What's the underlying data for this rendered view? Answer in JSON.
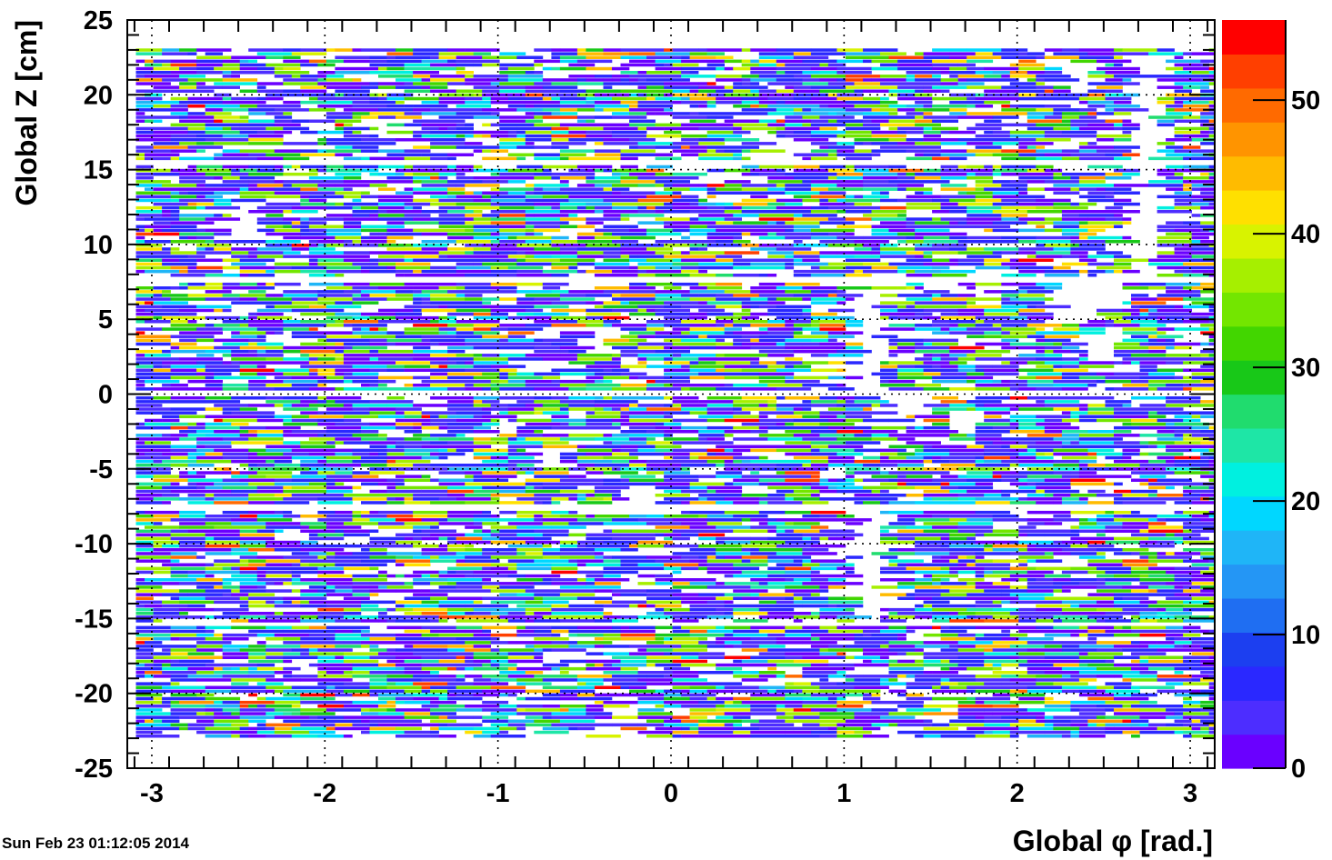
{
  "chart_data": {
    "type": "heatmap",
    "title": "",
    "xlabel": "Global φ [rad.]",
    "ylabel": "Global Z [cm]",
    "xlim": [
      -3.1416,
      3.1416
    ],
    "ylim": [
      -25,
      25
    ],
    "x_ticks": [
      "-3",
      "-2",
      "-1",
      "0",
      "1",
      "2",
      "3"
    ],
    "y_ticks": [
      "25",
      "20",
      "15",
      "10",
      "5",
      "0",
      "-5",
      "-10",
      "-15",
      "-20",
      "-25"
    ],
    "z_range": [
      0,
      56
    ],
    "z_ticks": [
      "0",
      "10",
      "20",
      "30",
      "40",
      "50"
    ],
    "grid": true,
    "occupied_z_ranges": [
      [
        -23.0,
        -15.6
      ],
      [
        -15.3,
        -7.8
      ],
      [
        -7.4,
        -0.2
      ],
      [
        0.2,
        7.4
      ],
      [
        7.8,
        15.3
      ],
      [
        15.6,
        22.9
      ]
    ],
    "empty_regions": [
      {
        "phi": [
          -2.55,
          -2.37
        ],
        "z": [
          10.3,
          12.8
        ]
      },
      {
        "phi": [
          -0.52,
          -0.33
        ],
        "z": [
          2.8,
          4.5
        ]
      },
      {
        "phi": [
          -0.25,
          -0.07
        ],
        "z": [
          -8.0,
          -6.2
        ]
      },
      {
        "phi": [
          -0.78,
          -0.6
        ],
        "z": [
          -4.8,
          -3.6
        ]
      },
      {
        "phi": [
          0.58,
          0.76
        ],
        "z": [
          15.4,
          17.2
        ]
      },
      {
        "phi": [
          1.07,
          1.23
        ],
        "z": [
          0.2,
          7.4
        ]
      },
      {
        "phi": [
          1.07,
          1.23
        ],
        "z": [
          -15.3,
          -7.8
        ]
      },
      {
        "phi": [
          1.3,
          1.47
        ],
        "z": [
          -1.5,
          -0.2
        ]
      },
      {
        "phi": [
          1.57,
          1.78
        ],
        "z": [
          -2.6,
          -1.2
        ]
      },
      {
        "phi": [
          2.22,
          2.44
        ],
        "z": [
          4.8,
          7.4
        ]
      },
      {
        "phi": [
          2.44,
          2.62
        ],
        "z": [
          2.8,
          4.5
        ]
      },
      {
        "phi": [
          2.44,
          2.62
        ],
        "z": [
          6.0,
          7.4
        ]
      },
      {
        "phi": [
          2.66,
          2.84
        ],
        "z": [
          7.8,
          22.9
        ]
      },
      {
        "phi": [
          2.3,
          2.45
        ],
        "z": [
          20.0,
          22.0
        ]
      }
    ],
    "palette": [
      "#6a00ff",
      "#4d2dff",
      "#2a28ff",
      "#1c3ff0",
      "#1f6ef2",
      "#2496f5",
      "#1fb5f7",
      "#00d7ff",
      "#00f0e0",
      "#1ee6a6",
      "#20dc6e",
      "#18c818",
      "#42d600",
      "#73e600",
      "#a6ef00",
      "#d8f300",
      "#ffe000",
      "#ffbb00",
      "#ff9400",
      "#ff6a00",
      "#ff3f00",
      "#ff0000"
    ]
  },
  "footer": {
    "timestamp": "Sun Feb 23 01:12:05 2014"
  }
}
